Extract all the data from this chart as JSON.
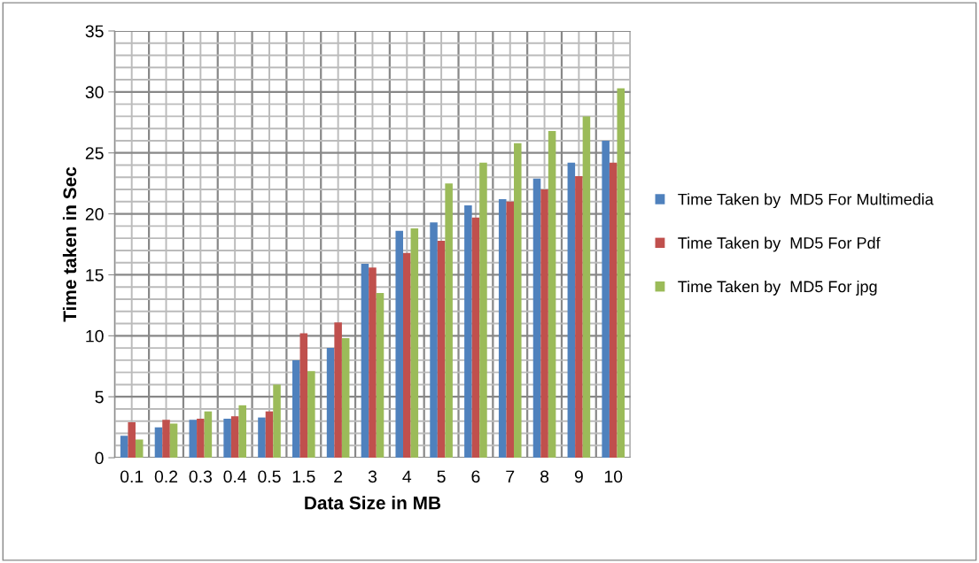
{
  "chart_data": {
    "type": "bar",
    "xlabel": "Data Size in MB",
    "ylabel": "Time taken in Sec",
    "categories": [
      "0.1",
      "0.2",
      "0.3",
      "0.4",
      "0.5",
      "1.5",
      "2",
      "3",
      "4",
      "5",
      "6",
      "7",
      "8",
      "9",
      "10"
    ],
    "series": [
      {
        "name": "Time Taken by  MD5 For Multimedia",
        "color": "#4f81bd",
        "values": [
          1.8,
          2.5,
          3.1,
          3.2,
          3.3,
          8.0,
          9.0,
          15.9,
          18.6,
          19.3,
          20.7,
          21.2,
          22.9,
          24.2,
          26.0
        ]
      },
      {
        "name": "Time Taken by  MD5 For Pdf",
        "color": "#c0504d",
        "values": [
          2.9,
          3.1,
          3.2,
          3.4,
          3.8,
          10.2,
          11.1,
          15.6,
          16.8,
          17.8,
          19.7,
          21.0,
          22.0,
          23.1,
          24.2
        ]
      },
      {
        "name": "Time Taken by  MD5 For jpg",
        "color": "#9bbb59",
        "values": [
          1.5,
          2.8,
          3.8,
          4.3,
          6.0,
          7.1,
          9.8,
          13.5,
          18.8,
          22.5,
          24.2,
          25.8,
          26.8,
          28.0,
          30.3
        ]
      }
    ],
    "ylim": [
      0,
      35
    ],
    "yticks": [
      0,
      5,
      10,
      15,
      20,
      25,
      30,
      35
    ],
    "grid": true,
    "legend": "right"
  }
}
